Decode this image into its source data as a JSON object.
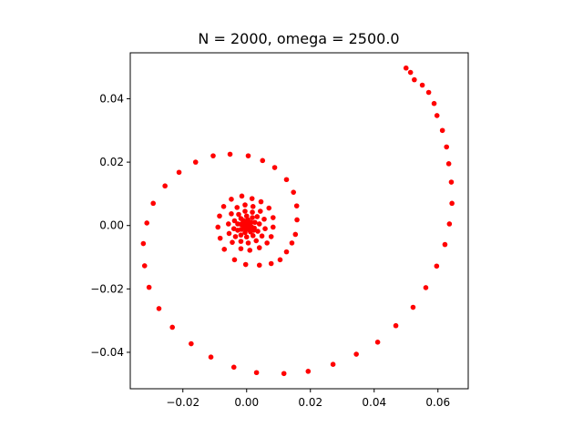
{
  "chart_data": {
    "type": "scatter",
    "title": "N = 2000, omega = 2500.0",
    "xlabel": "",
    "ylabel": "",
    "xlim": [
      -0.0365,
      0.0695
    ],
    "ylim": [
      -0.0515,
      0.0545
    ],
    "xticks": [
      {
        "value": -0.02,
        "label": "−0.02"
      },
      {
        "value": 0.0,
        "label": "0.00"
      },
      {
        "value": 0.02,
        "label": "0.02"
      },
      {
        "value": 0.04,
        "label": "0.04"
      },
      {
        "value": 0.06,
        "label": "0.06"
      }
    ],
    "yticks": [
      {
        "value": -0.04,
        "label": "−0.04"
      },
      {
        "value": -0.02,
        "label": "−0.02"
      },
      {
        "value": 0.0,
        "label": "0.00"
      },
      {
        "value": 0.02,
        "label": "0.02"
      },
      {
        "value": 0.04,
        "label": "0.04"
      }
    ],
    "grid": false,
    "marker_color": "#ff0000",
    "points": [
      [
        0.05,
        0.0497
      ],
      [
        0.0514,
        0.0483
      ],
      [
        0.0526,
        0.046
      ],
      [
        0.0551,
        0.0443
      ],
      [
        0.0571,
        0.042
      ],
      [
        0.0588,
        0.0385
      ],
      [
        0.0597,
        0.0347
      ],
      [
        0.0614,
        0.03
      ],
      [
        0.0627,
        0.0248
      ],
      [
        0.0634,
        0.0195
      ],
      [
        0.0642,
        0.0137
      ],
      [
        0.0644,
        0.007
      ],
      [
        0.0636,
        0.0005
      ],
      [
        0.0622,
        -0.006
      ],
      [
        0.0596,
        -0.0128
      ],
      [
        0.0562,
        -0.0196
      ],
      [
        0.0522,
        -0.0258
      ],
      [
        0.0468,
        -0.0316
      ],
      [
        0.0411,
        -0.0368
      ],
      [
        0.0344,
        -0.0406
      ],
      [
        0.0271,
        -0.0438
      ],
      [
        0.0193,
        -0.046
      ],
      [
        0.0117,
        -0.0467
      ],
      [
        0.0031,
        -0.0464
      ],
      [
        -0.004,
        -0.0447
      ],
      [
        -0.0112,
        -0.0415
      ],
      [
        -0.0174,
        -0.0373
      ],
      [
        -0.0233,
        -0.0321
      ],
      [
        -0.0275,
        -0.0262
      ],
      [
        -0.0306,
        -0.0195
      ],
      [
        -0.032,
        -0.0127
      ],
      [
        -0.0324,
        -0.0057
      ],
      [
        -0.0313,
        0.0008
      ],
      [
        -0.0293,
        0.007
      ],
      [
        -0.0256,
        0.0125
      ],
      [
        -0.0212,
        0.0168
      ],
      [
        -0.016,
        0.02
      ],
      [
        -0.0105,
        0.022
      ],
      [
        -0.0052,
        0.0225
      ],
      [
        0.0005,
        0.022
      ],
      [
        0.005,
        0.0205
      ],
      [
        0.0088,
        0.0183
      ],
      [
        0.0125,
        0.0145
      ],
      [
        0.0147,
        0.0105
      ],
      [
        0.0157,
        0.0062
      ],
      [
        0.0158,
        0.0018
      ],
      [
        0.0153,
        -0.0028
      ],
      [
        0.0142,
        -0.0055
      ],
      [
        0.0125,
        -0.0083
      ],
      [
        0.0105,
        -0.0108
      ],
      [
        0.0077,
        -0.012
      ],
      [
        0.004,
        -0.0125
      ],
      [
        -0.0003,
        -0.0123
      ],
      [
        -0.0038,
        -0.0108
      ],
      [
        -0.007,
        -0.0075
      ],
      [
        -0.0083,
        -0.004
      ],
      [
        -0.009,
        -0.0005
      ],
      [
        -0.0085,
        0.003
      ],
      [
        -0.0072,
        0.006
      ],
      [
        -0.0048,
        0.0083
      ],
      [
        -0.0015,
        0.0093
      ],
      [
        0.0017,
        0.0085
      ],
      [
        0.0045,
        0.0075
      ],
      [
        0.007,
        0.0055
      ],
      [
        0.0083,
        0.0025
      ],
      [
        0.0083,
        -0.0005
      ],
      [
        0.0077,
        -0.0035
      ],
      [
        0.0064,
        -0.0055
      ],
      [
        0.004,
        -0.007
      ],
      [
        0.001,
        -0.0078
      ],
      [
        -0.0018,
        -0.0073
      ],
      [
        -0.0045,
        -0.0053
      ],
      [
        -0.0055,
        -0.0025
      ],
      [
        -0.0057,
        0.0005
      ],
      [
        -0.0048,
        0.0037
      ],
      [
        -0.003,
        0.0057
      ],
      [
        -0.0005,
        0.0065
      ],
      [
        0.002,
        0.006
      ],
      [
        0.0043,
        0.0045
      ],
      [
        0.0055,
        0.002
      ],
      [
        0.0058,
        -0.001
      ],
      [
        0.0048,
        -0.0033
      ],
      [
        0.003,
        -0.0048
      ],
      [
        0.0005,
        -0.0055
      ],
      [
        -0.0018,
        -0.005
      ],
      [
        -0.0035,
        -0.0035
      ],
      [
        -0.004,
        -0.001
      ],
      [
        -0.0038,
        0.0015
      ],
      [
        -0.0025,
        0.0035
      ],
      [
        -0.0005,
        0.0045
      ],
      [
        0.0018,
        0.0042
      ],
      [
        0.0033,
        0.0028
      ],
      [
        0.004,
        0.0005
      ],
      [
        0.0035,
        -0.0018
      ],
      [
        0.002,
        -0.0032
      ],
      [
        0.0,
        -0.0036
      ],
      [
        -0.0018,
        -0.003
      ],
      [
        -0.0028,
        -0.0015
      ],
      [
        -0.0028,
        0.0005
      ],
      [
        -0.0018,
        0.0022
      ],
      [
        0.0,
        0.003
      ],
      [
        0.0018,
        0.0025
      ],
      [
        0.0026,
        0.001
      ],
      [
        0.0024,
        -0.0008
      ],
      [
        0.0012,
        -0.002
      ],
      [
        -0.0005,
        -0.0022
      ],
      [
        -0.0017,
        -0.0012
      ],
      [
        -0.0018,
        0.0004
      ],
      [
        -0.001,
        0.0016
      ],
      [
        0.0004,
        0.0018
      ],
      [
        0.0014,
        0.001
      ],
      [
        0.0015,
        -0.0004
      ],
      [
        0.0008,
        -0.0013
      ],
      [
        -0.0003,
        -0.0012
      ],
      [
        -0.0009,
        -0.0004
      ],
      [
        -0.0007,
        0.0006
      ],
      [
        0.0001,
        0.0009
      ],
      [
        0.0007,
        0.0004
      ],
      [
        0.0006,
        -0.0003
      ],
      [
        0.0001,
        -0.0005
      ],
      [
        -0.0002,
        0.0
      ],
      [
        0.0002,
        0.0002
      ],
      [
        0.0,
        0.0
      ],
      [
        0.001,
        0.0
      ],
      [
        -0.0012,
        0.0008
      ],
      [
        0.0022,
        -0.0015
      ]
    ]
  }
}
